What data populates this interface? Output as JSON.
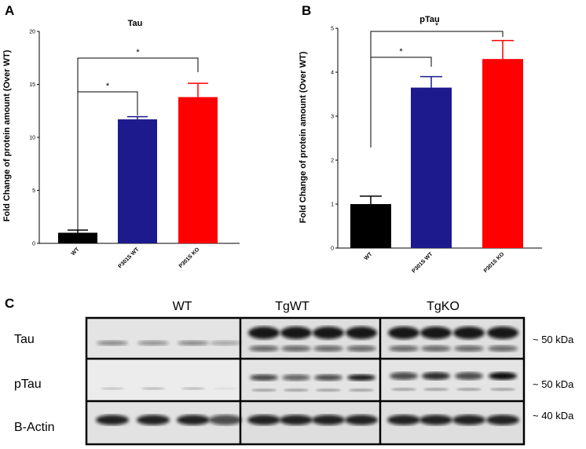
{
  "panels": {
    "a": "A",
    "b": "B",
    "c": "C"
  },
  "colors": {
    "wt": "#000000",
    "p301s_wt": "#1c1a8c",
    "p301s_ko": "#ff0000"
  },
  "chart_data": [
    {
      "type": "bar",
      "title": "Tau",
      "ylabel": "Fold Change of protein amount (Over WT)",
      "categories": [
        "WT",
        "P301S WT",
        "P301S KO"
      ],
      "values": [
        1.0,
        11.7,
        13.8
      ],
      "errors": [
        0.25,
        0.25,
        1.3
      ],
      "ylim": [
        0,
        20
      ],
      "yticks": [
        0,
        5,
        10,
        15,
        20
      ],
      "tick_labels": [
        "0",
        "5",
        "10",
        "15",
        "20"
      ],
      "significance": [
        {
          "from": "WT",
          "to": "P301S WT",
          "label": "*"
        },
        {
          "from": "WT",
          "to": "P301S KO",
          "label": "*"
        }
      ],
      "grid": false
    },
    {
      "type": "bar",
      "title": "pTau",
      "ylabel": "Fold Change of protein amount (Over WT)",
      "categories": [
        "WT",
        "P301S WT",
        "P301S KO"
      ],
      "values": [
        1.0,
        3.65,
        4.3
      ],
      "errors": [
        0.18,
        0.25,
        0.42
      ],
      "ylim": [
        0,
        5
      ],
      "yticks": [
        0,
        1,
        2,
        3,
        4,
        5
      ],
      "tick_labels": [
        "0",
        "1",
        "2",
        "3",
        "4",
        "5"
      ],
      "significance": [
        {
          "from": "WT",
          "to": "P301S WT",
          "label": "*"
        },
        {
          "from": "WT",
          "to": "P301S KO",
          "label": "*"
        }
      ],
      "grid": false
    }
  ],
  "blot": {
    "groups": [
      "WT",
      "TgWT",
      "TgKO"
    ],
    "rows": [
      "Tau",
      "pTau",
      "B-Actin"
    ],
    "sizes": [
      "~ 50 kDa",
      "~ 50 kDa",
      "~ 40 kDa"
    ]
  }
}
